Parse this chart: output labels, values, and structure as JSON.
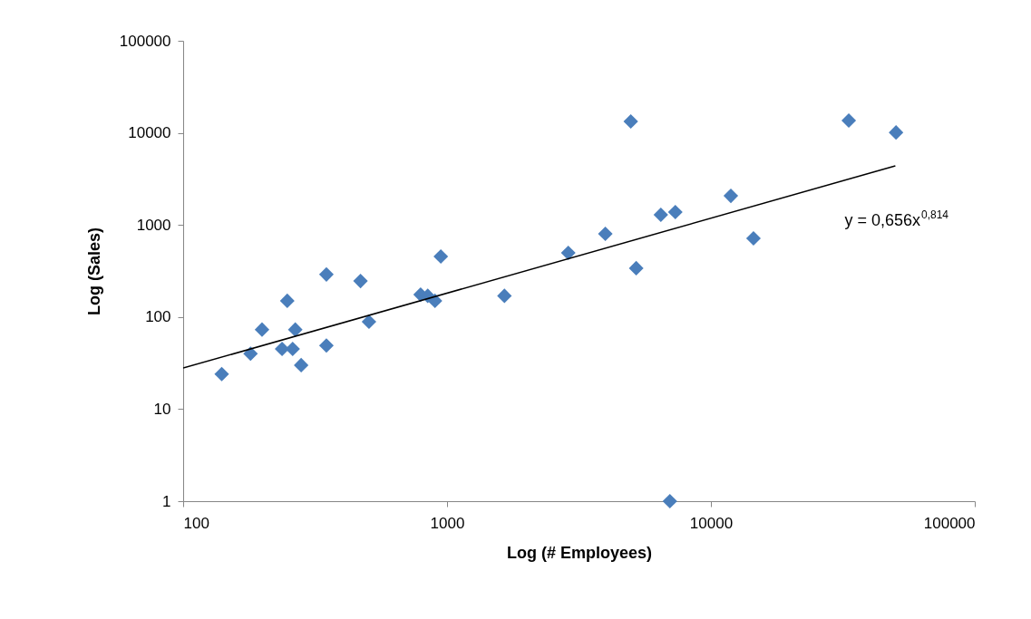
{
  "chart_data": {
    "type": "scatter",
    "xlabel": "Log (# Employees)",
    "ylabel": "Log (Sales)",
    "log": "xy",
    "xlim": [
      100,
      100000
    ],
    "xticks": [
      100,
      1000,
      10000,
      100000
    ],
    "ylim": [
      1,
      100000
    ],
    "yticks": [
      1,
      10,
      100,
      1000,
      10000,
      100000
    ],
    "grid": false,
    "annotations": [
      "y = 0,656x$^{0,814}$"
    ],
    "series": [
      {
        "marker": "diamond",
        "color": "#4a7ebb",
        "x": [
          140,
          180,
          199,
          248,
          237,
          260,
          266,
          280,
          349,
          349,
          470,
          506,
          794,
          845,
          900,
          947,
          1650,
          2880,
          3980,
          4970,
          5210,
          6460,
          6990,
          7330,
          11900,
          14500,
          33300,
          50300
        ],
        "values": [
          24,
          40,
          73,
          150,
          45,
          45,
          73,
          30,
          290,
          49,
          246,
          89,
          175,
          170,
          150,
          454,
          170,
          497,
          800,
          13300,
          339,
          1290,
          1,
          1380,
          2070,
          715,
          13600,
          10100
        ]
      },
      {
        "type": "line",
        "color": "#000000",
        "line_style": "solid",
        "x": [
          100,
          50000
        ],
        "values": [
          27.9,
          4384
        ]
      }
    ]
  }
}
